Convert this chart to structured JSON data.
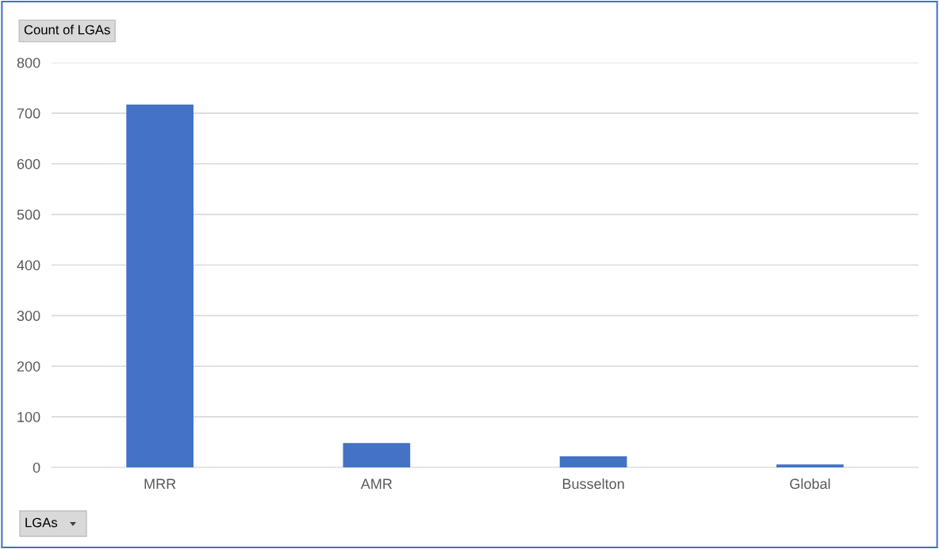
{
  "chart_data": {
    "type": "bar",
    "ylabel": "Count of LGAs",
    "xlabel": "LGAs",
    "categories": [
      "MRR",
      "AMR",
      "Busselton",
      "Global"
    ],
    "values": [
      717,
      48,
      22,
      6
    ],
    "color": "#4472c4",
    "ylim": [
      0,
      800
    ],
    "yticks": [
      0,
      100,
      200,
      300,
      400,
      500,
      600,
      700,
      800
    ],
    "grid": "y",
    "legend": false
  }
}
